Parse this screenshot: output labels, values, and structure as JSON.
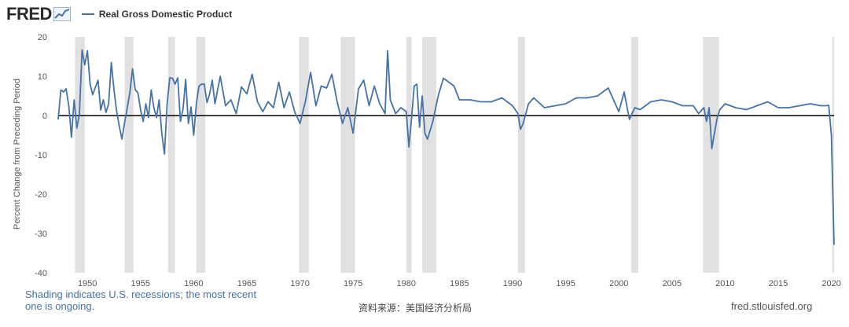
{
  "header": {
    "logo_text": "FRED",
    "legend_label": "Real Gross Domestic Product"
  },
  "colors": {
    "series": "#4572a7",
    "recession": "#e1e1e1",
    "zero_line": "#000000",
    "axis_text": "#555555"
  },
  "footer": {
    "note": "Shading indicates U.S. recessions; the most recent one is ongoing.",
    "source": "资料来源：美国经济分析局",
    "site": "fred.stlouisfed.org"
  },
  "chart_data": {
    "type": "line",
    "title": "",
    "xlabel": "",
    "ylabel": "Percent Change from Preceding Period",
    "xlim": [
      1947.25,
      2020.25
    ],
    "ylim": [
      -40,
      20
    ],
    "y_ticks": [
      20,
      10,
      0,
      -10,
      -20,
      -30,
      -40
    ],
    "x_ticks": [
      1950,
      1955,
      1960,
      1965,
      1970,
      1975,
      1980,
      1985,
      1990,
      1995,
      2000,
      2005,
      2010,
      2015,
      2020
    ],
    "grid": false,
    "zero_line": true,
    "legend_position": "top-left",
    "recessions": [
      [
        1948.83,
        1949.75
      ],
      [
        1953.5,
        1954.33
      ],
      [
        1957.58,
        1958.25
      ],
      [
        1960.25,
        1961.08
      ],
      [
        1969.92,
        1970.83
      ],
      [
        1973.83,
        1975.17
      ],
      [
        1980.0,
        1980.5
      ],
      [
        1981.5,
        1982.83
      ],
      [
        1990.5,
        1991.17
      ],
      [
        2001.17,
        2001.83
      ],
      [
        2007.92,
        2009.42
      ],
      [
        2020.08,
        2020.25
      ]
    ],
    "series": [
      {
        "x": [
          1947.25,
          1947.5,
          1947.75,
          1948,
          1948.25,
          1948.5,
          1948.75,
          1949,
          1949.25,
          1949.5,
          1949.75,
          1950,
          1950.25,
          1950.5,
          1950.75,
          1951,
          1951.25,
          1951.5,
          1951.75,
          1952,
          1952.25,
          1952.5,
          1952.75,
          1953,
          1953.25,
          1953.5,
          1953.75,
          1954,
          1954.25,
          1954.5,
          1954.75,
          1955,
          1955.25,
          1955.5,
          1955.75,
          1956,
          1956.25,
          1956.5,
          1956.75,
          1957,
          1957.25,
          1957.5,
          1957.75,
          1958,
          1958.25,
          1958.5,
          1958.75,
          1959,
          1959.25,
          1959.5,
          1959.75,
          1960,
          1960.25,
          1960.5,
          1960.75,
          1961,
          1961.25,
          1961.5,
          1961.75,
          1962,
          1962.5,
          1963,
          1963.5,
          1964,
          1964.5,
          1965,
          1965.5,
          1966,
          1966.5,
          1967,
          1967.5,
          1968,
          1968.5,
          1969,
          1969.5,
          1970,
          1970.5,
          1971,
          1971.5,
          1972,
          1972.5,
          1973,
          1973.5,
          1974,
          1974.5,
          1975,
          1975.5,
          1976,
          1976.5,
          1977,
          1977.5,
          1978,
          1978.25,
          1978.5,
          1979,
          1979.5,
          1980,
          1980.25,
          1980.5,
          1980.75,
          1981,
          1981.25,
          1981.5,
          1981.75,
          1982,
          1982.5,
          1983,
          1983.5,
          1984,
          1984.5,
          1985,
          1986,
          1987,
          1988,
          1989,
          1990,
          1990.5,
          1990.75,
          1991,
          1991.5,
          1992,
          1993,
          1994,
          1995,
          1996,
          1997,
          1998,
          1999,
          2000,
          2000.5,
          2001,
          2001.5,
          2002,
          2003,
          2004,
          2005,
          2006,
          2007,
          2007.5,
          2008,
          2008.25,
          2008.5,
          2008.75,
          2009,
          2009.25,
          2009.5,
          2010,
          2011,
          2012,
          2013,
          2014,
          2015,
          2016,
          2017,
          2018,
          2019,
          2019.5,
          2019.75,
          2020,
          2020.25
        ],
        "values": [
          -1,
          6.5,
          6,
          6.8,
          2.5,
          -5.5,
          4,
          -3.2,
          0.3,
          16.7,
          12.9,
          16.5,
          8.0,
          5.3,
          7.2,
          9.0,
          1.4,
          4.0,
          0.8,
          3.0,
          13.5,
          6.5,
          1.1,
          -2.7,
          -6.0,
          -1.8,
          2.0,
          6.0,
          11.9,
          6.6,
          5.8,
          1.5,
          -1.5,
          3.0,
          -0.5,
          6.5,
          2.0,
          -0.5,
          4.0,
          -4.5,
          -9.8,
          3.0,
          9.6,
          9.5,
          8.0,
          9.6,
          -1.5,
          1.8,
          9.2,
          -2.0,
          2.2,
          -5.0,
          3.0,
          7.5,
          8.0,
          8.0,
          3.3,
          5.5,
          9.0,
          3.0,
          10.0,
          2.5,
          4.0,
          0.5,
          7.3,
          5.5,
          10.5,
          3.5,
          1.0,
          3.5,
          2.0,
          8.5,
          2.0,
          6.0,
          1.0,
          -2.0,
          3.5,
          11.0,
          2.5,
          7.5,
          7.0,
          10.5,
          3.5,
          -2.0,
          2.0,
          -4.5,
          6.8,
          9.0,
          2.5,
          7.5,
          3.0,
          0.5,
          16.5,
          4.0,
          0.5,
          2.0,
          1.0,
          -8.0,
          -0.5,
          7.5,
          8.0,
          -3.0,
          5.0,
          -4.5,
          -6.0,
          -1.5,
          5.0,
          9.5,
          8.5,
          7.5,
          4.0,
          4.0,
          3.5,
          3.5,
          4.5,
          2.5,
          0.5,
          -3.5,
          -2.0,
          3.0,
          4.5,
          2.0,
          2.5,
          3.0,
          4.5,
          4.5,
          5.0,
          7.0,
          1.0,
          6.0,
          -1.0,
          2.0,
          1.5,
          3.5,
          4.0,
          3.5,
          2.5,
          2.5,
          0.5,
          2.0,
          -1.5,
          2.0,
          -8.4,
          -4.4,
          -0.6,
          1.5,
          3.0,
          2.0,
          1.5,
          2.5,
          3.5,
          2.0,
          2.0,
          2.5,
          3.0,
          2.5,
          2.5,
          2.6,
          -5.0,
          -32.9
        ]
      }
    ]
  }
}
